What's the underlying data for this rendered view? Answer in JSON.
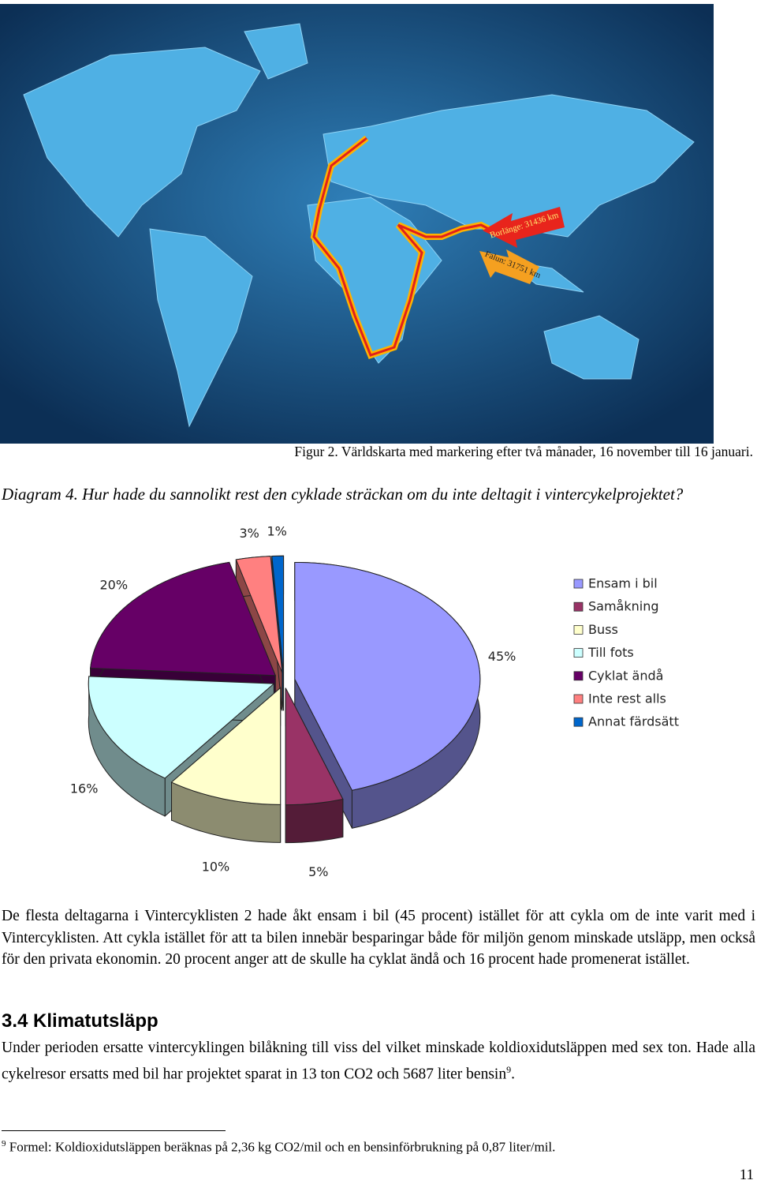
{
  "map": {
    "labels": [
      "Borlänge: 31436 km",
      "Falun: 31751 km"
    ]
  },
  "figure_caption": "Figur 2. Världskarta med markering efter två månader, 16 november till 16 januari.",
  "diagram_caption": "Diagram 4. Hur hade du sannolikt rest den cyklade sträckan om du inte deltagit i vintercykelprojektet?",
  "chart_data": {
    "type": "pie",
    "categories": [
      "Ensam i bil",
      "Samåkning",
      "Buss",
      "Till fots",
      "Cyklat ändå",
      "Inte rest alls",
      "Annat färdsätt"
    ],
    "values": [
      45,
      5,
      10,
      16,
      20,
      3,
      1
    ],
    "value_labels": [
      "45%",
      "5%",
      "10%",
      "16%",
      "20%",
      "3%",
      "1%"
    ],
    "colors": [
      "#9999ff",
      "#993366",
      "#ffffcc",
      "#ccffff",
      "#660066",
      "#ff8080",
      "#0066cc"
    ],
    "legend": "right"
  },
  "paragraphs": [
    "De flesta deltagarna i Vintercyklisten 2 hade åkt ensam i bil (45 procent) istället för att cykla om de inte varit med i Vintercyklisten. Att cykla istället för att ta bilen innebär besparingar både för miljön genom minskade utsläpp, men också för den privata ekonomin. 20 procent anger att de skulle ha cyklat ändå och 16 procent hade promenerat istället."
  ],
  "heading": "3.4 Klimatutsläpp",
  "paragraph2": {
    "text": "Under perioden ersatte vintercyklingen bilåkning till viss del vilket minskade koldioxidutsläppen med sex ton. Hade alla cykelresor ersatts med bil har projektet sparat in 13 ton CO2 och 5687 liter bensin",
    "footnote_ref": "9",
    "end": "."
  },
  "footnote": {
    "marker": "9",
    "text": "Formel: Koldioxidutsläppen beräknas på 2,36 kg CO2/mil och en bensinförbrukning på 0,87 liter/mil."
  },
  "page_number": "11"
}
